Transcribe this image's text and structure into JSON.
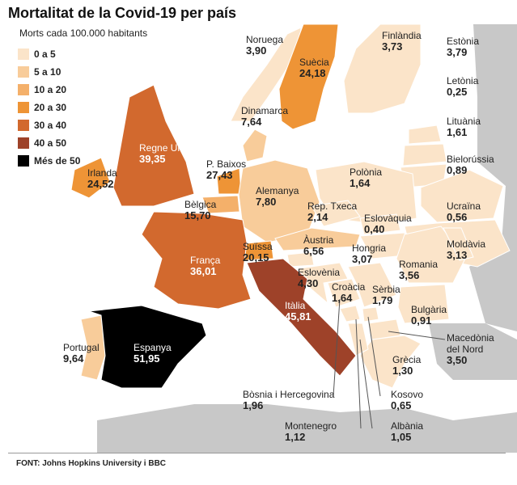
{
  "title": "Mortalitat de la Covid-19 per país",
  "subtitle": "Morts cada 100.000 habitants",
  "legend": {
    "bins": [
      {
        "label": "0 a 5",
        "min": 0,
        "max": 5,
        "color": "#fbe4c9"
      },
      {
        "label": "5 a 10",
        "min": 5,
        "max": 10,
        "color": "#f8cc9a"
      },
      {
        "label": "10 a 20",
        "min": 10,
        "max": 20,
        "color": "#f4b06a"
      },
      {
        "label": "20 a 30",
        "min": 20,
        "max": 30,
        "color": "#ee9436"
      },
      {
        "label": "30 a 40",
        "min": 30,
        "max": 40,
        "color": "#d2692e"
      },
      {
        "label": "40 a 50",
        "min": 40,
        "max": 50,
        "color": "#9e4229"
      },
      {
        "label": "Més de 50",
        "min": 50,
        "color": "#000000"
      }
    ]
  },
  "regions": [
    {
      "name": "Noruega",
      "value": 3.9,
      "value_label": "3,90"
    },
    {
      "name": "Suècia",
      "value": 24.18,
      "value_label": "24,18"
    },
    {
      "name": "Finlàndia",
      "value": 3.73,
      "value_label": "3,73"
    },
    {
      "name": "Estònia",
      "value": 3.79,
      "value_label": "3,79"
    },
    {
      "name": "Letònia",
      "value": 0.25,
      "value_label": "0,25"
    },
    {
      "name": "Lituània",
      "value": 1.61,
      "value_label": "1,61"
    },
    {
      "name": "Dinamarca",
      "value": 7.64,
      "value_label": "7,64"
    },
    {
      "name": "Regne Unit",
      "value": 39.35,
      "value_label": "39,35"
    },
    {
      "name": "Irlanda",
      "value": 24.52,
      "value_label": "24,52"
    },
    {
      "name": "P. Baixos",
      "value": 27.43,
      "value_label": "27,43"
    },
    {
      "name": "Bielorússia",
      "value": 0.89,
      "value_label": "0,89"
    },
    {
      "name": "Polònia",
      "value": 1.64,
      "value_label": "1,64"
    },
    {
      "name": "Alemanya",
      "value": 7.8,
      "value_label": "7,80"
    },
    {
      "name": "Bèlgica",
      "value": 15.7,
      "value_label": "15,70"
    },
    {
      "name": "Rep. Txeca",
      "value": 2.14,
      "value_label": "2,14"
    },
    {
      "name": "Ucraïna",
      "value": 0.56,
      "value_label": "0,56"
    },
    {
      "name": "Eslovàquia",
      "value": 0.4,
      "value_label": "0,40"
    },
    {
      "name": "Àustria",
      "value": 6.56,
      "value_label": "6,56"
    },
    {
      "name": "Suïssa",
      "value": 20.15,
      "value_label": "20,15"
    },
    {
      "name": "França",
      "value": 36.01,
      "value_label": "36,01"
    },
    {
      "name": "Hongria",
      "value": 3.07,
      "value_label": "3,07"
    },
    {
      "name": "Romania",
      "value": 3.56,
      "value_label": "3,56"
    },
    {
      "name": "Moldàvia",
      "value": 3.13,
      "value_label": "3,13"
    },
    {
      "name": "Eslovènia",
      "value": 4.3,
      "value_label": "4,30"
    },
    {
      "name": "Croàcia",
      "value": 1.64,
      "value_label": "1,64"
    },
    {
      "name": "Sèrbia",
      "value": 1.79,
      "value_label": "1,79"
    },
    {
      "name": "Itàlia",
      "value": 45.81,
      "value_label": "45,81"
    },
    {
      "name": "Bulgària",
      "value": 0.91,
      "value_label": "0,91"
    },
    {
      "name": "Portugal",
      "value": 9.64,
      "value_label": "9,64"
    },
    {
      "name": "Espanya",
      "value": 51.95,
      "value_label": "51,95"
    },
    {
      "name": "Grècia",
      "value": 1.3,
      "value_label": "1,30"
    },
    {
      "name": "Macedònia del Nord",
      "value": 3.5,
      "value_label": "3,50"
    },
    {
      "name": "Bòsnia i Hercegovina",
      "value": 1.96,
      "value_label": "1,96"
    },
    {
      "name": "Kosovo",
      "value": 0.65,
      "value_label": "0,65"
    },
    {
      "name": "Montenegro",
      "value": 1.12,
      "value_label": "1,12"
    },
    {
      "name": "Albània",
      "value": 1.05,
      "value_label": "1,05"
    }
  ],
  "source": "FONT: Johns Hopkins University i BBC"
}
